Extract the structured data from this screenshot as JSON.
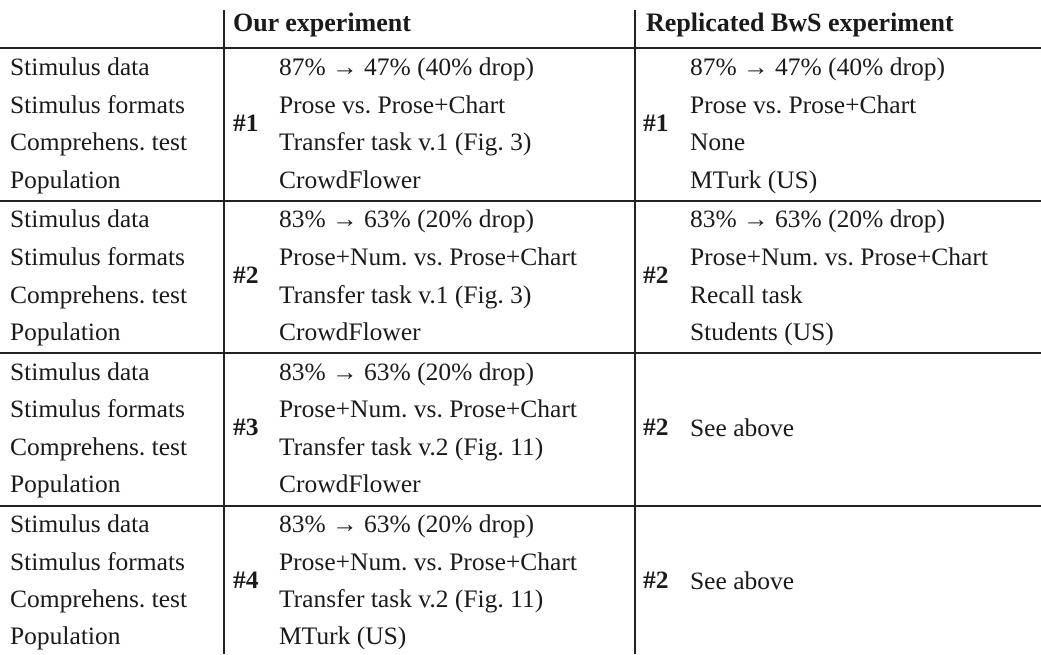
{
  "header": {
    "ours": "Our experiment",
    "replicated": "Replicated BwS experiment"
  },
  "row_labels": [
    "Stimulus data",
    "Stimulus formats",
    "Comprehens. test",
    "Population"
  ],
  "groups": [
    {
      "ours_id": "#1",
      "ours": [
        "87% → 47% (40% drop)",
        "Prose vs. Prose+Chart",
        "Transfer task v.1 (Fig. 3)",
        "CrowdFlower"
      ],
      "rep_id": "#1",
      "rep": [
        "87% → 47% (40% drop)",
        "Prose vs. Prose+Chart",
        "None",
        "MTurk (US)"
      ]
    },
    {
      "ours_id": "#2",
      "ours": [
        "83% → 63% (20% drop)",
        "Prose+Num. vs. Prose+Chart",
        "Transfer task v.1 (Fig. 3)",
        "CrowdFlower"
      ],
      "rep_id": "#2",
      "rep": [
        "83% → 63% (20% drop)",
        "Prose+Num. vs. Prose+Chart",
        "Recall task",
        "Students (US)"
      ]
    },
    {
      "ours_id": "#3",
      "ours": [
        "83% → 63% (20% drop)",
        "Prose+Num. vs. Prose+Chart",
        "Transfer task v.2 (Fig. 11)",
        "CrowdFlower"
      ],
      "rep_id": "#2",
      "rep_note": "See above"
    },
    {
      "ours_id": "#4",
      "ours": [
        "83% → 63% (20% drop)",
        "Prose+Num. vs. Prose+Chart",
        "Transfer task v.2 (Fig. 11)",
        "MTurk (US)"
      ],
      "rep_id": "#2",
      "rep_note": "See above"
    }
  ]
}
